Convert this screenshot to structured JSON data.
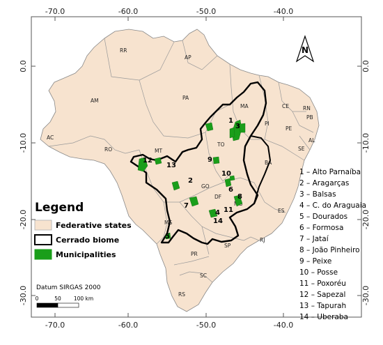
{
  "axes": {
    "top_lon_labels": [
      "-70.0",
      "-60.0",
      "-50.0",
      "-40.0"
    ],
    "bottom_lon_labels": [
      "-70.0",
      "-60.0",
      "-50.0",
      "-40.0"
    ],
    "left_lat_labels": [
      "0.0",
      "-10.0",
      "-20.0",
      "-30.0"
    ],
    "right_lat_labels": [
      "0.0",
      "-10.0",
      "-20.0",
      "-30.0"
    ]
  },
  "states": [
    {
      "code": "RR"
    },
    {
      "code": "AP"
    },
    {
      "code": "AM"
    },
    {
      "code": "PA"
    },
    {
      "code": "MA"
    },
    {
      "code": "CE"
    },
    {
      "code": "RN"
    },
    {
      "code": "PB"
    },
    {
      "code": "PI"
    },
    {
      "code": "PE"
    },
    {
      "code": "AL"
    },
    {
      "code": "SE"
    },
    {
      "code": "AC"
    },
    {
      "code": "RO"
    },
    {
      "code": "TO"
    },
    {
      "code": "BA"
    },
    {
      "code": "MT"
    },
    {
      "code": "GO"
    },
    {
      "code": "DF"
    },
    {
      "code": "MG"
    },
    {
      "code": "ES"
    },
    {
      "code": "MS"
    },
    {
      "code": "SP"
    },
    {
      "code": "RJ"
    },
    {
      "code": "PR"
    },
    {
      "code": "SC"
    },
    {
      "code": "RS"
    }
  ],
  "municipality_numbers": [
    "1",
    "2",
    "3",
    "4",
    "5",
    "6",
    "7",
    "8",
    "9",
    "10",
    "11",
    "12",
    "13",
    "14"
  ],
  "municipality_list": [
    "1 – Alto Parnaíba",
    "2 – Aragarças",
    "3 – Balsas",
    "4 – C. do Araguaia",
    "5 – Dourados",
    "6 – Formosa",
    "7 – Jataí",
    "8 – João Pinheiro",
    "9 – Peixe",
    "10 – Posse",
    "11 – Poxoréu",
    "12 – Sapezal",
    "13 – Tapurah",
    "14 – Uberaba"
  ],
  "legend": {
    "title": "Legend",
    "items": [
      {
        "label": "Federative states",
        "color": "#f7e3cf",
        "border": "#bbbbbb"
      },
      {
        "label": "Cerrado biome",
        "color": "#ffffff",
        "border": "#000000"
      },
      {
        "label": "Municipalities",
        "color": "#1a9e1a",
        "border": "#1a9e1a"
      }
    ]
  },
  "datum": "Datum SIRGAS 2000",
  "scale_bar": {
    "labels": [
      "0",
      "50",
      "100 km"
    ]
  },
  "north_arrow": {
    "label": "N"
  },
  "colors": {
    "land": "#f7e3cf",
    "state_border": "#9a9a9a",
    "cerrado": "#000000",
    "municipality": "#1a9e1a"
  }
}
